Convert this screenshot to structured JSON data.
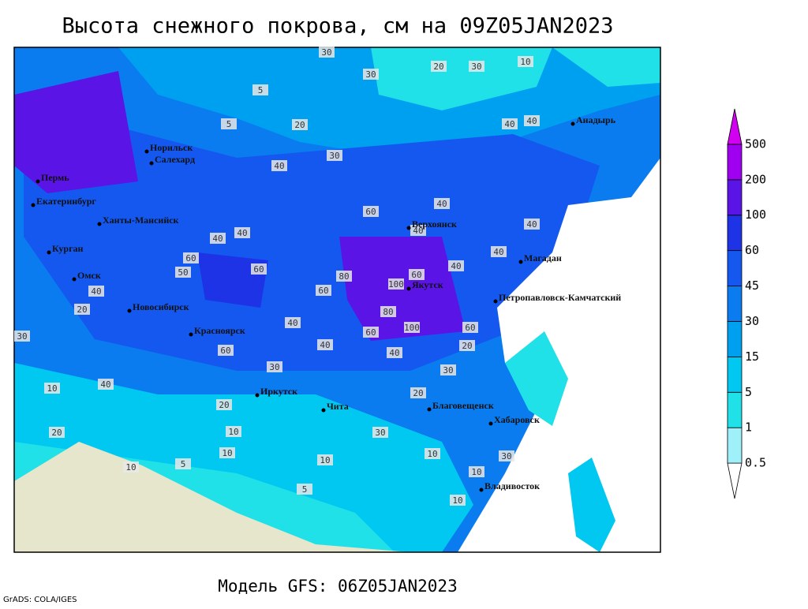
{
  "title": "Высота снежного покрова, см на 09Z05JAN2023",
  "model": "Модель GFS: 06Z05JAN2023",
  "credit": "GrADS: COLA/IGES",
  "legend": {
    "levels": [
      0.5,
      1,
      5,
      15,
      30,
      45,
      60,
      100,
      200,
      500
    ],
    "colors": [
      "#ffffff",
      "#a0f0fa",
      "#20e0e8",
      "#00c8f0",
      "#00a0f0",
      "#0a7cf0",
      "#1458f0",
      "#1e32e6",
      "#5a14e6",
      "#a000f0",
      "#d200f0"
    ]
  },
  "cities": [
    "Норильск",
    "Салехард",
    "Пермь",
    "Екатеринбург",
    "Ханты-Мансийск",
    "Курган",
    "Омск",
    "Новосибирск",
    "Красноярск",
    "Иркутск",
    "Чита",
    "Благовещенск",
    "Хабаровск",
    "Владивосток",
    "Якутск",
    "Верхоянск",
    "Магадан",
    "Петропавловск-Камчатский",
    "Анадырь"
  ],
  "contour_labels": [
    30,
    20,
    30,
    10,
    30,
    5,
    5,
    20,
    40,
    40,
    40,
    30,
    40,
    60,
    40,
    40,
    40,
    40,
    60,
    60,
    50,
    40,
    40,
    80,
    100,
    60,
    60,
    40,
    20,
    80,
    100,
    60,
    40,
    60,
    40,
    60,
    30,
    40,
    10,
    20,
    10,
    30,
    10,
    10,
    5,
    10,
    10,
    20,
    30,
    40,
    20,
    30,
    30,
    10,
    10,
    5,
    20
  ]
}
